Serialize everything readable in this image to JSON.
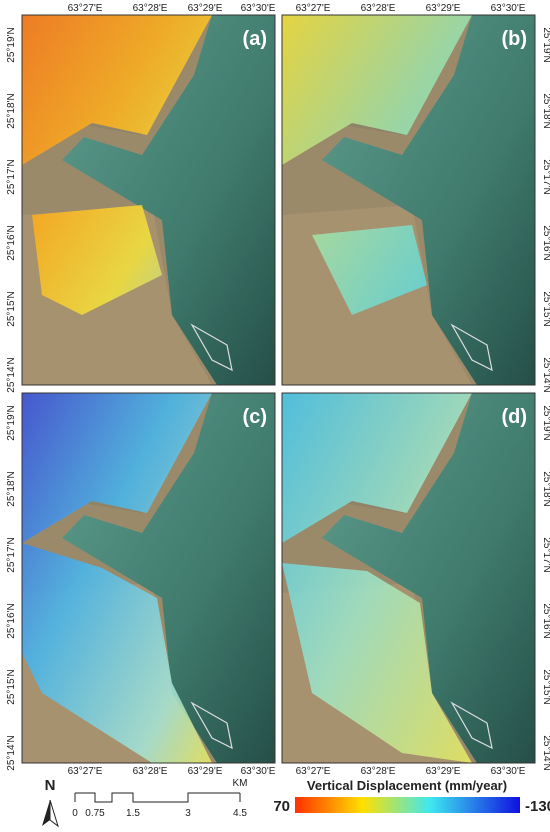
{
  "panels": [
    {
      "label": "(a)"
    },
    {
      "label": "(b)"
    },
    {
      "label": "(c)"
    },
    {
      "label": "(d)"
    }
  ],
  "longitude_ticks": [
    "63°27'E",
    "63°28'E",
    "63°29'E",
    "63°30'E"
  ],
  "latitude_ticks": [
    "25°19'N",
    "25°18'N",
    "25°17'N",
    "25°16'N",
    "25°15'N",
    "25°14'N"
  ],
  "north_arrow": "N",
  "scale_bar": {
    "labels": [
      "0",
      "0.75",
      "1.5",
      "3",
      "4.5"
    ],
    "unit": "KM"
  },
  "legend": {
    "title": "Vertical Displacement (mm/year)",
    "min_label": "70",
    "max_label": "-130"
  }
}
